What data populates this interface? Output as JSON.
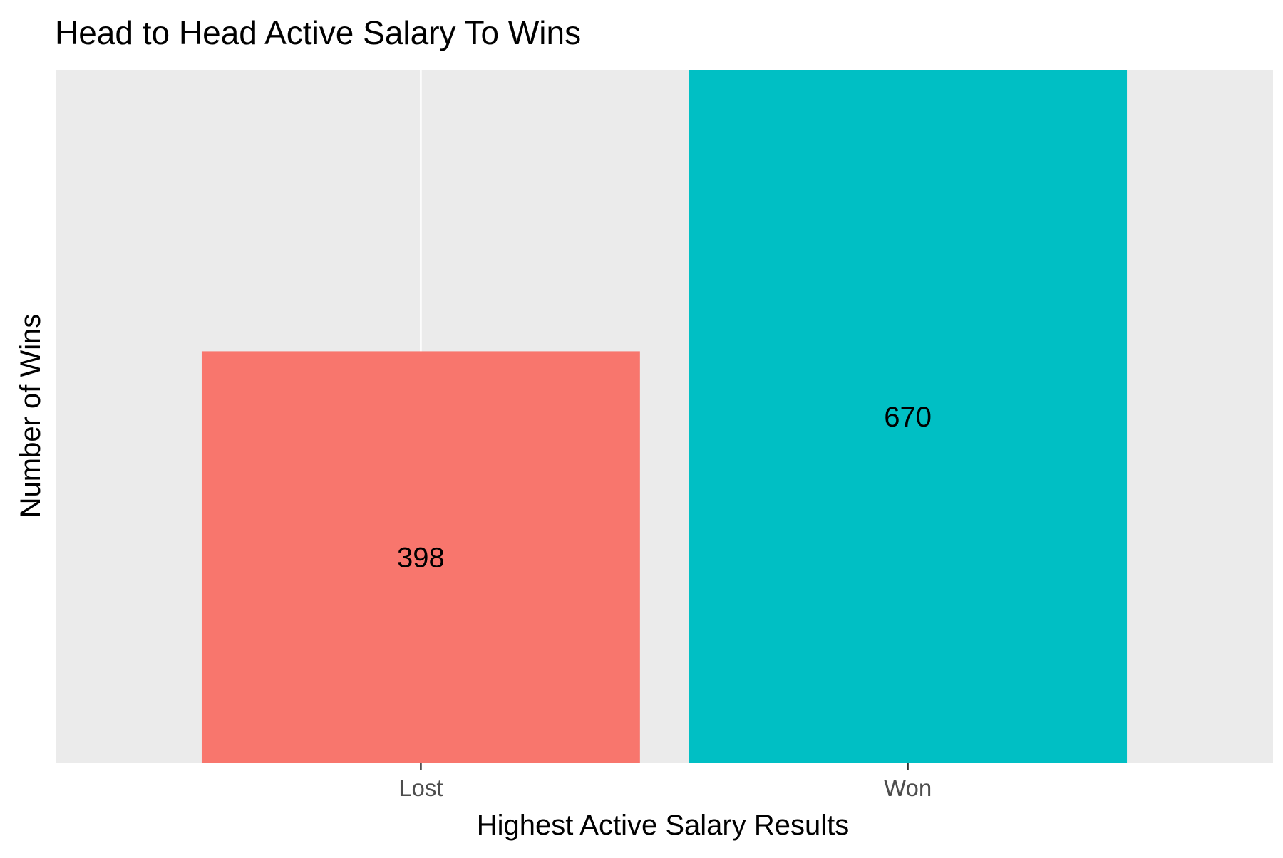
{
  "chart_data": {
    "type": "bar",
    "title": "Head to Head Active Salary To Wins",
    "xlabel": "Highest Active Salary Results",
    "ylabel": "Number of Wins",
    "categories": [
      "Lost",
      "Won"
    ],
    "values": [
      398,
      670
    ],
    "data_labels": [
      "398",
      "670"
    ],
    "colors": [
      "#F8766D",
      "#00BFC4"
    ],
    "ylim": [
      0,
      670
    ],
    "y_ticks_shown": false,
    "grid": true,
    "legend": "none",
    "panel_background": "#EBEBEB",
    "gridline_color": "#FFFFFF"
  }
}
